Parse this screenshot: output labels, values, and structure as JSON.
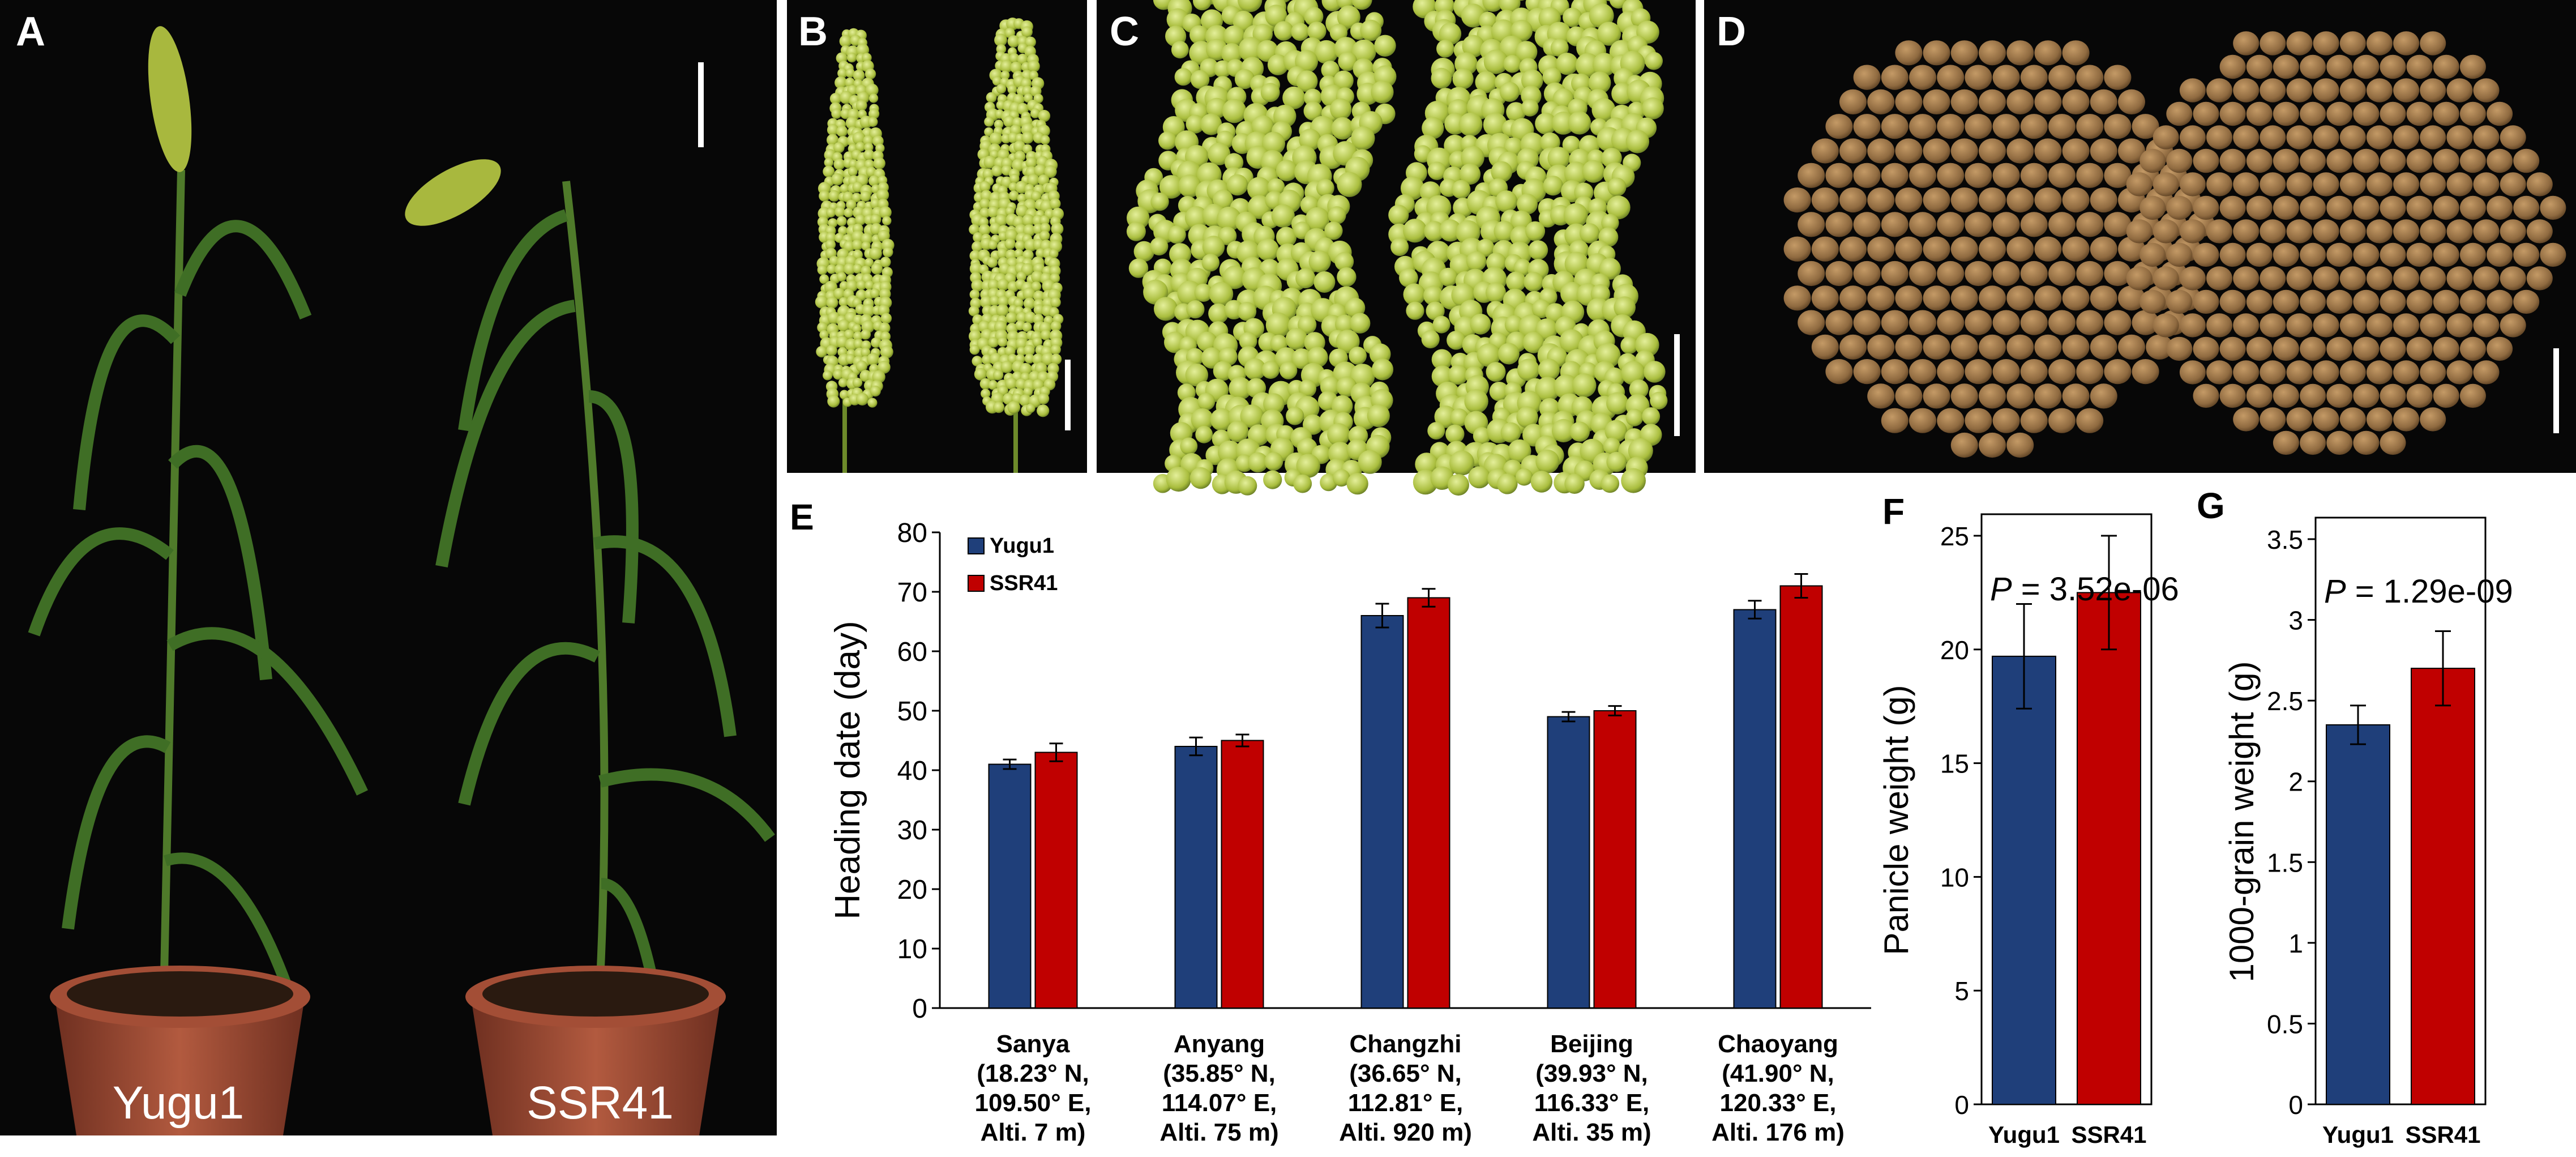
{
  "photos": {
    "A": {
      "letter": "A",
      "labels": [
        "Yugu1",
        "SSR41"
      ]
    },
    "B": {
      "letter": "B"
    },
    "C": {
      "letter": "C"
    },
    "D": {
      "letter": "D"
    }
  },
  "colors": {
    "yugu1": "#1f3f7a",
    "ssr41": "#c00000",
    "photo_bg": "#070707",
    "panicle": "#b8c94a",
    "grain": "#8f6a40",
    "pot": "#9c4a33"
  },
  "chart_data": [
    {
      "panel": "E",
      "type": "bar",
      "title": "",
      "ylabel": "Heading date (day)",
      "ylim": [
        0,
        80
      ],
      "yticks": [
        "0",
        "10",
        "20",
        "30",
        "40",
        "50",
        "60",
        "70",
        "80"
      ],
      "categories": [
        [
          "Sanya",
          "(18.23° N,",
          "109.50° E,",
          "Alti. 7 m)"
        ],
        [
          "Anyang",
          "(35.85° N,",
          "114.07° E,",
          "Alti. 75 m)"
        ],
        [
          "Changzhi",
          "(36.65° N,",
          "112.81° E,",
          "Alti. 920 m)"
        ],
        [
          "Beijing",
          "(39.93° N,",
          "116.33° E,",
          "Alti. 35 m)"
        ],
        [
          "Chaoyang",
          "(41.90° N,",
          "120.33° E,",
          "Alti. 176 m)"
        ]
      ],
      "series": [
        {
          "name": "Yugu1",
          "values": [
            41,
            44,
            66,
            49,
            67
          ],
          "errors": [
            0.8,
            1.5,
            2.0,
            0.8,
            1.5
          ]
        },
        {
          "name": "SSR41",
          "values": [
            43,
            45,
            69,
            50,
            71
          ],
          "errors": [
            1.5,
            1.0,
            1.5,
            0.8,
            2.0
          ]
        }
      ],
      "legend": "top-left"
    },
    {
      "panel": "F",
      "type": "bar",
      "ylabel": "Panicle weight (g)",
      "ylim": [
        0,
        25
      ],
      "yticks": [
        "0",
        "5",
        "10",
        "15",
        "20",
        "25"
      ],
      "categories": [
        "Yugu1",
        "SSR41"
      ],
      "values": [
        19.7,
        22.5
      ],
      "errors": [
        2.3,
        2.5
      ],
      "p_prefix": "P",
      "p_value": " = 3.52e-06"
    },
    {
      "panel": "G",
      "type": "bar",
      "ylabel": "1000-grain weight (g)",
      "ylim": [
        0,
        3.5
      ],
      "yticks": [
        "0",
        "0.5",
        "1",
        "1.5",
        "2",
        "2.5",
        "3",
        "3.5"
      ],
      "categories": [
        "Yugu1",
        "SSR41"
      ],
      "values": [
        2.35,
        2.7
      ],
      "errors": [
        0.12,
        0.23
      ],
      "p_prefix": "P",
      "p_value": " = 1.29e-09"
    }
  ]
}
